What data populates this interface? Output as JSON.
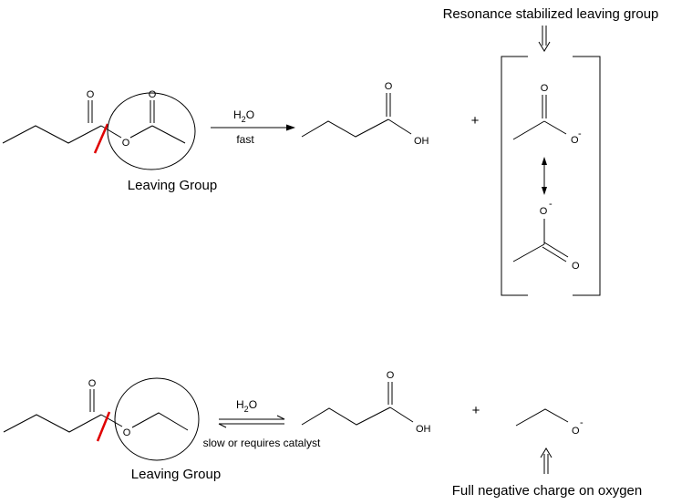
{
  "captions": {
    "resonance_title": "Resonance stabilized leaving group",
    "leaving_group_top": "Leaving Group",
    "leaving_group_bottom": "Leaving Group",
    "full_negative": "Full negative charge on oxygen"
  },
  "reaction_top": {
    "reagent_main": "H",
    "reagent_sub": "2",
    "reagent_tail": "O",
    "condition": "fast",
    "plus": "+"
  },
  "reaction_bottom": {
    "reagent_main": "H",
    "reagent_sub": "2",
    "reagent_tail": "O",
    "condition": "slow or requires catalyst",
    "plus": "+"
  },
  "atoms": {
    "oxygen": "O",
    "hydroxyl": "OH",
    "minus": "-"
  },
  "colors": {
    "cut_mark": "#e00000",
    "ink": "#000000"
  }
}
